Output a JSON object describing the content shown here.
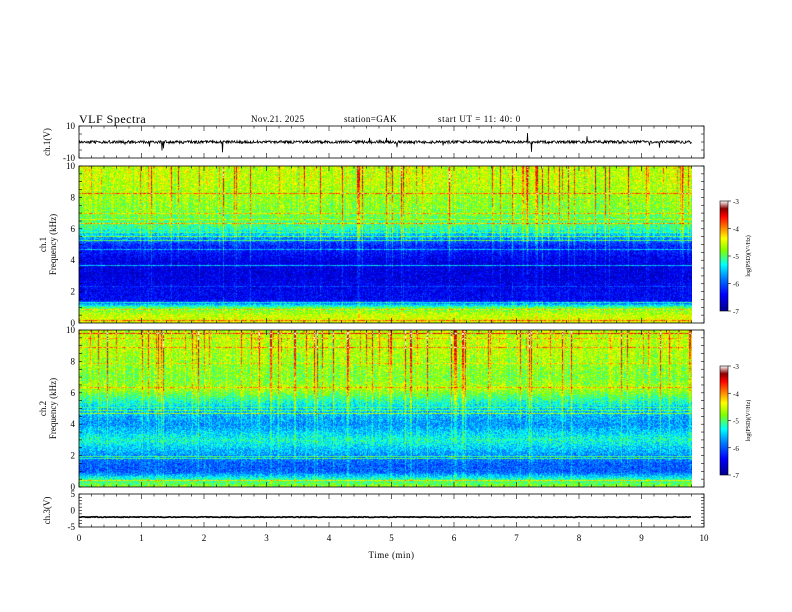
{
  "header": {
    "title": "VLF  Spectra",
    "date": "Nov.21. 2025",
    "station": "station=GAK",
    "start": "start  UT  =   11: 40: 0"
  },
  "colors": {
    "colormap": [
      "#00008b",
      "#0000ff",
      "#007fff",
      "#00ffff",
      "#7fff00",
      "#ffff00",
      "#ff7f00",
      "#ff0000",
      "#8b0000",
      "#ffffff"
    ],
    "trace": "#000000",
    "axis": "#000000"
  },
  "chart_data": [
    {
      "type": "line",
      "id": "ch1",
      "ylabel": "ch.1(V)",
      "ylim": [
        -10,
        10
      ],
      "yticks": [
        10,
        -10
      ],
      "xlim": [
        0,
        10
      ],
      "baseline": 0,
      "description_of_signal": "waveform near 0 V with sporadic spikes"
    },
    {
      "type": "heatmap",
      "id": "ch1-spectrogram",
      "channel_label": "ch.1",
      "ylabel": "Frequency  (kHz)",
      "ylim": [
        0,
        10
      ],
      "yticks": [
        0,
        2,
        4,
        6,
        8,
        10
      ],
      "xlim": [
        0,
        10
      ],
      "data_end_min": 9.8,
      "colorbar": {
        "label": "log(PSD)(V²/Hz)",
        "range": [
          -7,
          -3
        ],
        "ticks": [
          "-3",
          "-4",
          "-5",
          "-6",
          "-7"
        ]
      },
      "band_profile_log_psd": {
        "freq_khz": [
          0,
          0.5,
          1,
          1.5,
          2,
          3,
          4,
          5,
          5.5,
          6,
          7,
          8,
          9,
          10
        ],
        "level": [
          -4.5,
          -4.6,
          -5.0,
          -6.5,
          -6.5,
          -6.6,
          -6.6,
          -6.3,
          -5.8,
          -5.3,
          -5.0,
          -4.9,
          -4.8,
          -4.8
        ]
      }
    },
    {
      "type": "heatmap",
      "id": "ch2-spectrogram",
      "channel_label": "ch.2",
      "ylabel": "Frequency  (kHz)",
      "ylim": [
        0,
        10
      ],
      "yticks": [
        0,
        2,
        4,
        6,
        8,
        10
      ],
      "xlim": [
        0,
        10
      ],
      "data_end_min": 9.8,
      "colorbar": {
        "label": "log(PSD)(V²/Hz)",
        "range": [
          -7,
          -3
        ],
        "ticks": [
          "-3",
          "-4",
          "-5",
          "-6",
          "-7"
        ]
      },
      "band_profile_log_psd": {
        "freq_khz": [
          0,
          0.5,
          1,
          1.5,
          2,
          3,
          4,
          5,
          6,
          6.3,
          7,
          8,
          9,
          10
        ],
        "level": [
          -4.8,
          -5.2,
          -6.0,
          -6.0,
          -5.8,
          -5.3,
          -5.8,
          -5.6,
          -5.0,
          -4.8,
          -5.0,
          -4.9,
          -4.8,
          -4.8
        ]
      }
    },
    {
      "type": "line",
      "id": "ch3",
      "ylabel": "ch.3(V)",
      "ylim": [
        -5,
        5
      ],
      "yticks": [
        5,
        0,
        -5
      ],
      "xlim": [
        0,
        10
      ],
      "baseline": -2,
      "xlabel": "Time  (min)",
      "xticks": [
        0,
        1,
        2,
        3,
        4,
        5,
        6,
        7,
        8,
        9,
        10
      ]
    }
  ]
}
